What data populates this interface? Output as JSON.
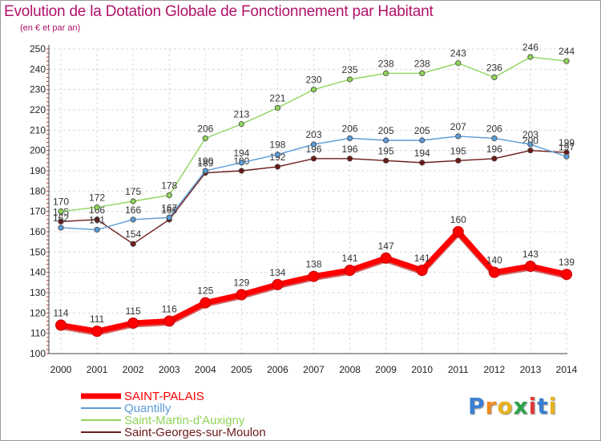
{
  "chart_data": {
    "type": "line",
    "title": "Evolution de la Dotation Globale de Fonctionnement par Habitant",
    "subtitle": "(en € et par an)",
    "xlabel": "",
    "ylabel": "",
    "ylim": [
      100,
      250
    ],
    "y_ticks": [
      100,
      110,
      120,
      130,
      140,
      150,
      160,
      170,
      180,
      190,
      200,
      210,
      220,
      230,
      240,
      250
    ],
    "x": [
      "2000",
      "2001",
      "2002",
      "2003",
      "2004",
      "2005",
      "2006",
      "2007",
      "2008",
      "2009",
      "2010",
      "2011",
      "2012",
      "2013",
      "2014"
    ],
    "grid": true,
    "legend_position": "bottom-left",
    "series": [
      {
        "name": "Saint-Georges-sur-Moulon",
        "color": "#6b1a1a",
        "values": [
          165,
          166,
          154,
          166,
          189,
          190,
          192,
          196,
          196,
          195,
          194,
          195,
          196,
          200,
          199
        ]
      },
      {
        "name": "Quantilly",
        "color": "#5b9bd5",
        "values": [
          162,
          161,
          166,
          167,
          190,
          194,
          198,
          203,
          206,
          205,
          205,
          207,
          206,
          203,
          197
        ]
      },
      {
        "name": "Saint-Martin-d'Auxigny",
        "color": "#8fd45a",
        "values": [
          170,
          172,
          175,
          178,
          206,
          213,
          221,
          230,
          235,
          238,
          238,
          243,
          236,
          246,
          244
        ]
      },
      {
        "name": "SAINT-PALAIS",
        "color": "#ff0000",
        "values": [
          114,
          111,
          115,
          116,
          125,
          129,
          134,
          138,
          141,
          147,
          141,
          160,
          140,
          143,
          139
        ]
      }
    ]
  },
  "legend": [
    {
      "name": "SAINT-PALAIS",
      "color": "#ff0000"
    },
    {
      "name": "Quantilly",
      "color": "#5b9bd5"
    },
    {
      "name": "Saint-Martin-d'Auxigny",
      "color": "#8fd45a"
    },
    {
      "name": "Saint-Georges-sur-Moulon",
      "color": "#6b1a1a"
    }
  ],
  "logo": {
    "text": "Proxiti",
    "colors": [
      "#3a7fd1",
      "#f08a1c",
      "#e8b21f",
      "#2aa34a",
      "#e23b3b",
      "#3a7fd1",
      "#e8b21f"
    ]
  },
  "colors": {
    "title": "#b0126a",
    "axis": "#444444",
    "grid": "#d9d9d9"
  }
}
